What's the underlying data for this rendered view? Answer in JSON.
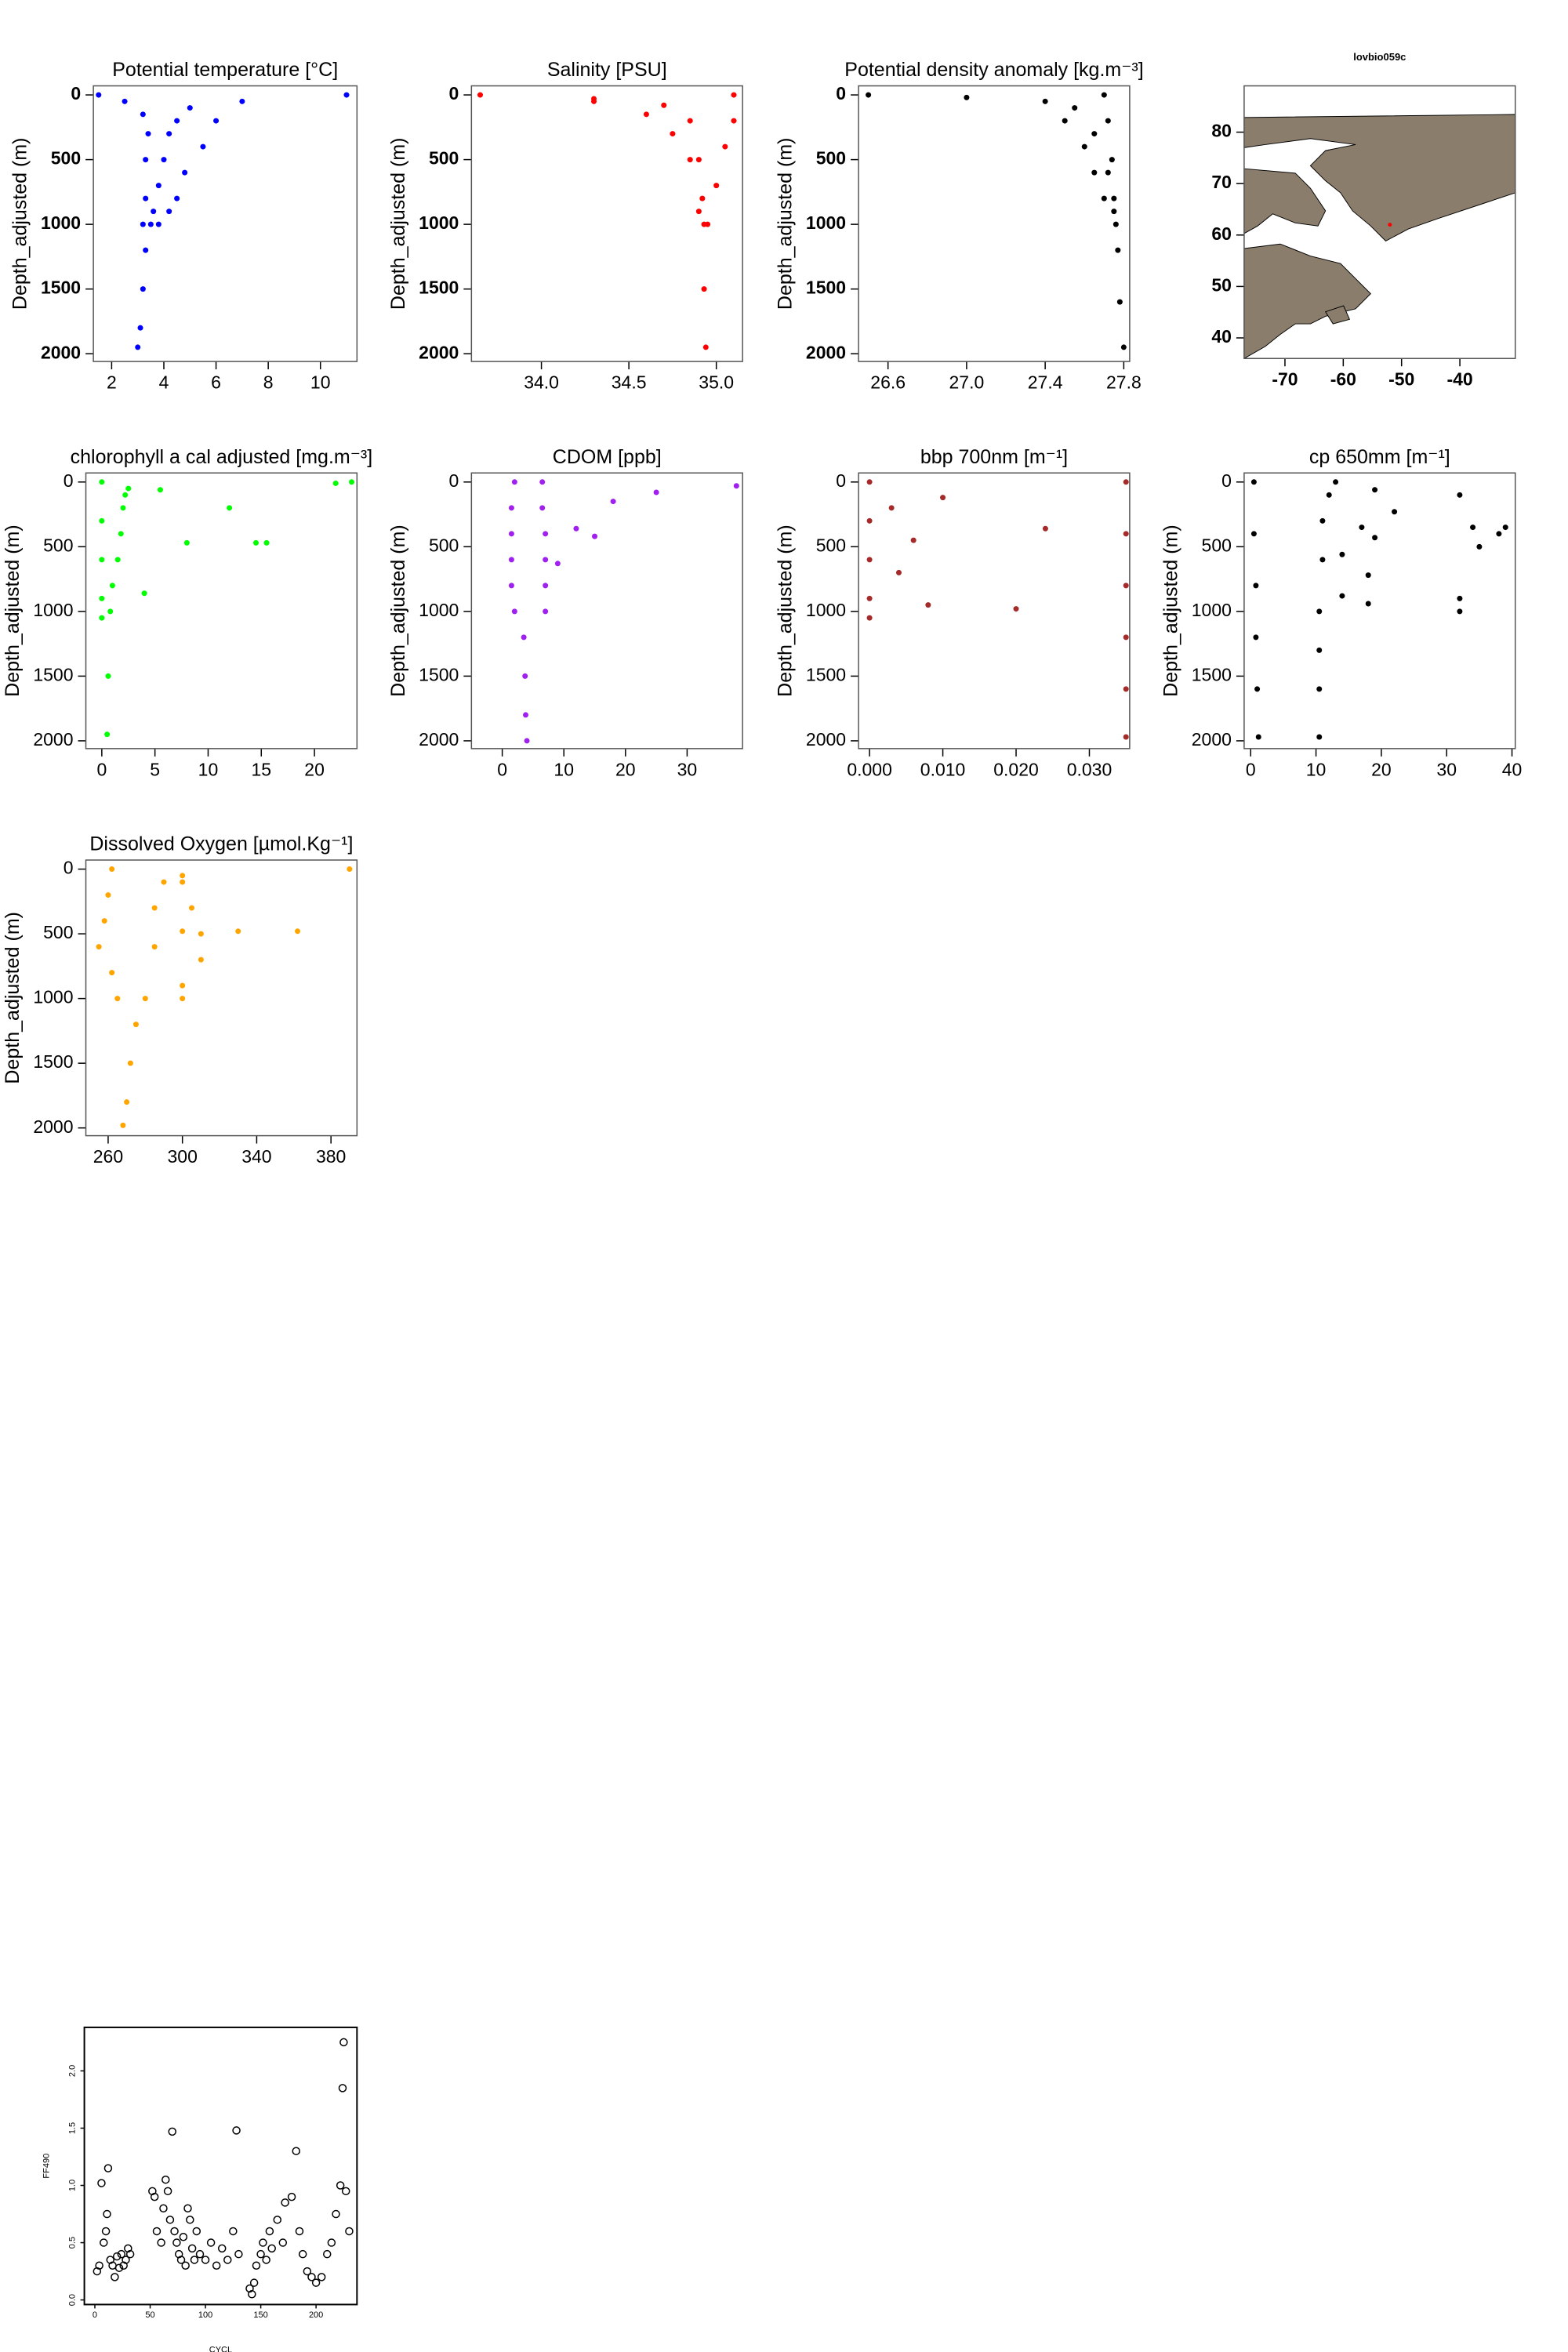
{
  "chart_data": [
    {
      "type": "profile",
      "title": "Potential temperature [°C]",
      "ylabel": "Depth_adjusted (m)",
      "xlim": [
        1.3,
        11.4
      ],
      "xticks": [
        2,
        4,
        6,
        8,
        10
      ],
      "ylim": [
        -70,
        2060
      ],
      "yticks": [
        0,
        500,
        1000,
        1500,
        2000
      ],
      "yinverted": true,
      "series": [
        {
          "color": "#0000ff",
          "x": [
            11,
            7,
            5,
            4.5,
            4.2,
            4.0,
            3.8,
            3.6,
            3.5,
            3.3,
            3.2,
            3.1,
            3.0
          ],
          "values": [
            0,
            50,
            100,
            200,
            300,
            500,
            700,
            900,
            1000,
            1200,
            1500,
            1800,
            1950
          ]
        },
        {
          "color": "#0000ff",
          "x": [
            1.5,
            2.5,
            3.2,
            3.4,
            3.3,
            3.3,
            3.2
          ],
          "values": [
            0,
            50,
            150,
            300,
            500,
            800,
            1000
          ]
        },
        {
          "color": "#0000ff",
          "x": [
            6,
            5.5,
            4.8,
            4.5,
            4.2,
            3.8
          ],
          "values": [
            200,
            400,
            600,
            800,
            900,
            1000
          ]
        }
      ]
    },
    {
      "type": "profile",
      "title": "Salinity [PSU]",
      "ylabel": "Depth_adjusted (m)",
      "xlim": [
        33.6,
        35.15
      ],
      "xticks": [
        {
          "value": 34,
          "label": "34.0"
        },
        34.5,
        {
          "value": 35,
          "label": "35.0"
        }
      ],
      "ylim": [
        -70,
        2060
      ],
      "yticks": [
        0,
        500,
        1000,
        1500,
        2000
      ],
      "yinverted": true,
      "series": [
        {
          "color": "#ff0000",
          "x": [
            33.65,
            34.3,
            34.7,
            34.85,
            34.9,
            34.92,
            34.93,
            34.93,
            34.94
          ],
          "values": [
            0,
            30,
            80,
            200,
            500,
            800,
            1000,
            1500,
            1950
          ]
        },
        {
          "color": "#ff0000",
          "x": [
            35.1,
            35.1,
            35.05,
            35.0,
            34.95
          ],
          "values": [
            0,
            200,
            400,
            700,
            1000
          ]
        },
        {
          "color": "#ff0000",
          "x": [
            34.3,
            34.6,
            34.75,
            34.85,
            34.9
          ],
          "values": [
            50,
            150,
            300,
            500,
            900
          ]
        }
      ]
    },
    {
      "type": "profile",
      "title": "Potential density anomaly [kg.m⁻³]",
      "ylabel": "Depth_adjusted (m)",
      "xlim": [
        26.45,
        27.83
      ],
      "xticks": [
        26.6,
        {
          "value": 27,
          "label": "27.0"
        },
        27.4,
        27.8
      ],
      "ylim": [
        -70,
        2060
      ],
      "yticks": [
        0,
        500,
        1000,
        1500,
        2000
      ],
      "yinverted": true,
      "series": [
        {
          "color": "#000000",
          "x": [
            26.5,
            27.0,
            27.4,
            27.55,
            27.65,
            27.72,
            27.75,
            27.77,
            27.78,
            27.8
          ],
          "values": [
            0,
            20,
            50,
            100,
            300,
            600,
            900,
            1200,
            1600,
            1950
          ]
        },
        {
          "color": "#000000",
          "x": [
            27.7,
            27.72,
            27.74,
            27.75,
            27.76
          ],
          "values": [
            0,
            200,
            500,
            800,
            1000
          ]
        },
        {
          "color": "#000000",
          "x": [
            27.5,
            27.6,
            27.65,
            27.7
          ],
          "values": [
            200,
            400,
            600,
            800
          ]
        }
      ]
    },
    {
      "type": "map",
      "title": "lovbio059c",
      "xlim": [
        -77,
        -30.5
      ],
      "xticks": [
        -70,
        -60,
        -50,
        -40
      ],
      "ylim": [
        36,
        89
      ],
      "yticks": [
        40,
        50,
        60,
        70,
        80
      ],
      "series": [
        {
          "color": "#ff0000",
          "x": [
            -52
          ],
          "values": [
            62
          ]
        }
      ]
    },
    {
      "type": "profile",
      "title": "chlorophyll a cal adjusted [mg.m⁻³]",
      "ylabel": "Depth_adjusted (m)",
      "xlim": [
        -1.5,
        24
      ],
      "xticks": [
        0,
        5,
        10,
        15,
        20
      ],
      "ylim": [
        -70,
        2060
      ],
      "yticks": [
        0,
        500,
        1000,
        1500,
        2000
      ],
      "yinverted": true,
      "series": [
        {
          "color": "#00ff00",
          "x": [
            23.5,
            2.5,
            2.2,
            2,
            1.8,
            1.5,
            1.0,
            0.8,
            0.6,
            0.5
          ],
          "values": [
            0,
            50,
            100,
            200,
            400,
            600,
            800,
            1000,
            1500,
            1950
          ]
        },
        {
          "color": "#00ff00",
          "x": [
            0,
            0,
            0,
            0,
            0
          ],
          "values": [
            0,
            300,
            600,
            900,
            1050
          ]
        },
        {
          "color": "#00ff00",
          "x": [
            14.5,
            15.5,
            8,
            12,
            5.5,
            4,
            22
          ],
          "values": [
            470,
            470,
            470,
            200,
            60,
            860,
            10
          ]
        }
      ]
    },
    {
      "type": "profile",
      "title": "CDOM [ppb]",
      "ylabel": "Depth_adjusted (m)",
      "xlim": [
        -5,
        39
      ],
      "xticks": [
        0,
        10,
        20,
        30
      ],
      "ylim": [
        -70,
        2060
      ],
      "yticks": [
        0,
        500,
        1000,
        1500,
        2000
      ],
      "yinverted": true,
      "series": [
        {
          "color": "#a020f0",
          "x": [
            2,
            1.5,
            1.5,
            1.5,
            1.5,
            2,
            3.5,
            3.7,
            3.8,
            4
          ],
          "values": [
            0,
            200,
            400,
            600,
            800,
            1000,
            1200,
            1500,
            1800,
            2000
          ]
        },
        {
          "color": "#a020f0",
          "x": [
            6.5,
            6.5,
            7,
            7,
            7,
            7
          ],
          "values": [
            0,
            200,
            400,
            600,
            800,
            1000
          ]
        },
        {
          "color": "#a020f0",
          "x": [
            38,
            25,
            18,
            12,
            15,
            9
          ],
          "values": [
            30,
            80,
            150,
            360,
            420,
            630
          ]
        }
      ]
    },
    {
      "type": "profile",
      "title": "bbp 700nm [m⁻¹]",
      "ylabel": "Depth_adjusted (m)",
      "xlim": [
        -0.0015,
        0.0355
      ],
      "xticks": [
        {
          "value": 0,
          "label": "0.000"
        },
        {
          "value": 0.01,
          "label": "0.010"
        },
        {
          "value": 0.02,
          "label": "0.020"
        },
        {
          "value": 0.03,
          "label": "0.030"
        }
      ],
      "ylim": [
        -70,
        2060
      ],
      "yticks": [
        0,
        500,
        1000,
        1500,
        2000
      ],
      "yinverted": true,
      "series": [
        {
          "color": "#a52a2a",
          "x": [
            0.035,
            0.035,
            0.035,
            0.035,
            0.035,
            0.035
          ],
          "values": [
            0,
            400,
            800,
            1200,
            1600,
            1970
          ]
        },
        {
          "color": "#a52a2a",
          "x": [
            0,
            0,
            0,
            0,
            0
          ],
          "values": [
            0,
            300,
            600,
            900,
            1050
          ]
        },
        {
          "color": "#a52a2a",
          "x": [
            0.024,
            0.02,
            0.01,
            0.006,
            0.004,
            0.008,
            0.003
          ],
          "values": [
            360,
            980,
            120,
            450,
            700,
            950,
            200
          ]
        }
      ]
    },
    {
      "type": "profile",
      "title": "cp 650mm [m⁻¹]",
      "ylabel": "Depth_adjusted (m)",
      "xlim": [
        -1,
        40.5
      ],
      "xticks": [
        0,
        10,
        20,
        30,
        40
      ],
      "ylim": [
        -70,
        2060
      ],
      "yticks": [
        0,
        500,
        1000,
        1500,
        2000
      ],
      "yinverted": true,
      "series": [
        {
          "color": "#000000",
          "x": [
            0.5,
            0.5,
            0.8,
            0.8,
            1,
            1.2
          ],
          "values": [
            0,
            400,
            800,
            1200,
            1600,
            1970
          ]
        },
        {
          "color": "#000000",
          "x": [
            13,
            12,
            11,
            11,
            10.5,
            10.5,
            10.5,
            10.5
          ],
          "values": [
            0,
            100,
            300,
            600,
            1000,
            1300,
            1600,
            1970
          ]
        },
        {
          "color": "#000000",
          "x": [
            19,
            22,
            17,
            19,
            14,
            18,
            14,
            18
          ],
          "values": [
            60,
            230,
            350,
            430,
            560,
            720,
            880,
            940
          ]
        },
        {
          "color": "#000000",
          "x": [
            32,
            34,
            35,
            38,
            39,
            32,
            32
          ],
          "values": [
            100,
            350,
            500,
            400,
            350,
            1000,
            900
          ]
        }
      ]
    },
    {
      "type": "profile",
      "title": "Dissolved Oxygen [µmol.Kg⁻¹]",
      "ylabel": "Depth_adjusted (m)",
      "xlim": [
        248,
        394
      ],
      "xticks": [
        260,
        300,
        340,
        380
      ],
      "ylim": [
        -70,
        2060
      ],
      "yticks": [
        0,
        500,
        1000,
        1500,
        2000
      ],
      "yinverted": true,
      "series": [
        {
          "color": "#ffa500",
          "x": [
            390,
            300,
            290,
            285,
            285,
            280,
            275,
            272,
            270,
            268
          ],
          "values": [
            0,
            50,
            100,
            300,
            600,
            1000,
            1200,
            1500,
            1800,
            1980
          ]
        },
        {
          "color": "#ffa500",
          "x": [
            262,
            260,
            258,
            255,
            262,
            265
          ],
          "values": [
            0,
            200,
            400,
            600,
            800,
            1000
          ]
        },
        {
          "color": "#ffa500",
          "x": [
            300,
            305,
            310,
            310,
            300,
            300
          ],
          "values": [
            100,
            300,
            500,
            700,
            900,
            1000
          ]
        },
        {
          "color": "#ffa500",
          "x": [
            300,
            330,
            362
          ],
          "values": [
            480,
            480,
            480
          ]
        }
      ]
    },
    {
      "type": "scatter",
      "xlabel": "CYCL",
      "ylabel": "FF490",
      "xlim": [
        -9.5,
        237
      ],
      "xticks": [
        0,
        50,
        100,
        150,
        200
      ],
      "ylim": [
        -0.04,
        2.38
      ],
      "yticks": [
        {
          "value": 0,
          "label": "0.0"
        },
        0.5,
        {
          "value": 1,
          "label": "1.0"
        },
        1.5,
        {
          "value": 2,
          "label": "2.0"
        }
      ],
      "series": [
        {
          "color": "#000000",
          "x": [
            2,
            4,
            6,
            8,
            10,
            11,
            12,
            14,
            16,
            18,
            20,
            22,
            24,
            26,
            28,
            30,
            32,
            52,
            54,
            56,
            60,
            62,
            64,
            66,
            68,
            70,
            72,
            74,
            76,
            78,
            80,
            82,
            84,
            86,
            88,
            90,
            92,
            95,
            100,
            105,
            110,
            115,
            120,
            125,
            128,
            130,
            140,
            142,
            144,
            146,
            150,
            152,
            155,
            158,
            160,
            165,
            170,
            172,
            178,
            182,
            185,
            188,
            192,
            196,
            200,
            205,
            210,
            214,
            218,
            222,
            224,
            225,
            227,
            230
          ],
          "values": [
            0.25,
            0.3,
            1.02,
            0.5,
            0.6,
            0.75,
            1.15,
            0.35,
            0.3,
            0.2,
            0.38,
            0.28,
            0.4,
            0.3,
            0.35,
            0.45,
            0.4,
            0.95,
            0.9,
            0.6,
            0.5,
            0.8,
            1.05,
            0.95,
            0.7,
            1.47,
            0.6,
            0.5,
            0.4,
            0.35,
            0.55,
            0.3,
            0.8,
            0.7,
            0.45,
            0.35,
            0.6,
            0.4,
            0.35,
            0.5,
            0.3,
            0.45,
            0.35,
            0.6,
            1.48,
            0.4,
            0.1,
            0.05,
            0.15,
            0.3,
            0.4,
            0.5,
            0.35,
            0.6,
            0.45,
            0.7,
            0.5,
            0.85,
            0.9,
            1.3,
            0.6,
            0.4,
            0.25,
            0.2,
            0.15,
            0.2,
            0.4,
            0.5,
            0.75,
            1.0,
            1.85,
            2.25,
            0.95,
            0.6
          ]
        }
      ]
    }
  ]
}
